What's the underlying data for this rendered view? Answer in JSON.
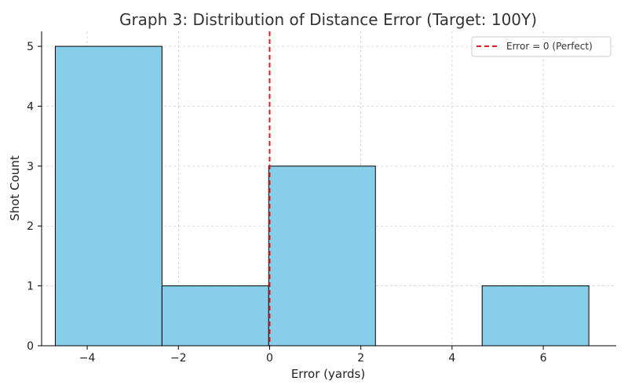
{
  "chart_data": {
    "type": "bar",
    "title": "Graph 3: Distribution of Distance Error (Target: 100Y)",
    "xlabel": "Error (yards)",
    "ylabel": "Shot Count",
    "xlim": [
      -5.0,
      7.6
    ],
    "ylim": [
      0,
      5.25
    ],
    "x_ticks": [
      -4,
      -2,
      0,
      2,
      4,
      6
    ],
    "x_tick_labels": [
      "−4",
      "−2",
      "0",
      "2",
      "4",
      "6"
    ],
    "y_ticks": [
      0,
      1,
      2,
      3,
      4,
      5
    ],
    "y_tick_labels": [
      "0",
      "1",
      "2",
      "3",
      "4",
      "5"
    ],
    "grid": true,
    "legend_position": "top-right",
    "bins": [
      {
        "start": -4.7,
        "end": -2.36,
        "count": 5
      },
      {
        "start": -2.36,
        "end": -0.02,
        "count": 1
      },
      {
        "start": -0.02,
        "end": 2.32,
        "count": 3
      },
      {
        "start": 2.32,
        "end": 4.66,
        "count": 0
      },
      {
        "start": 4.66,
        "end": 7.0,
        "count": 1
      }
    ],
    "reference_line": {
      "label": "Error = 0 (Perfect)",
      "x": 0,
      "style": "dashed",
      "color": "#e31a1c"
    },
    "colors": {
      "bar_fill": "#87ceeb",
      "bar_edge": "#000000",
      "grid": "#cfcfcf",
      "axis": "#000000"
    }
  }
}
